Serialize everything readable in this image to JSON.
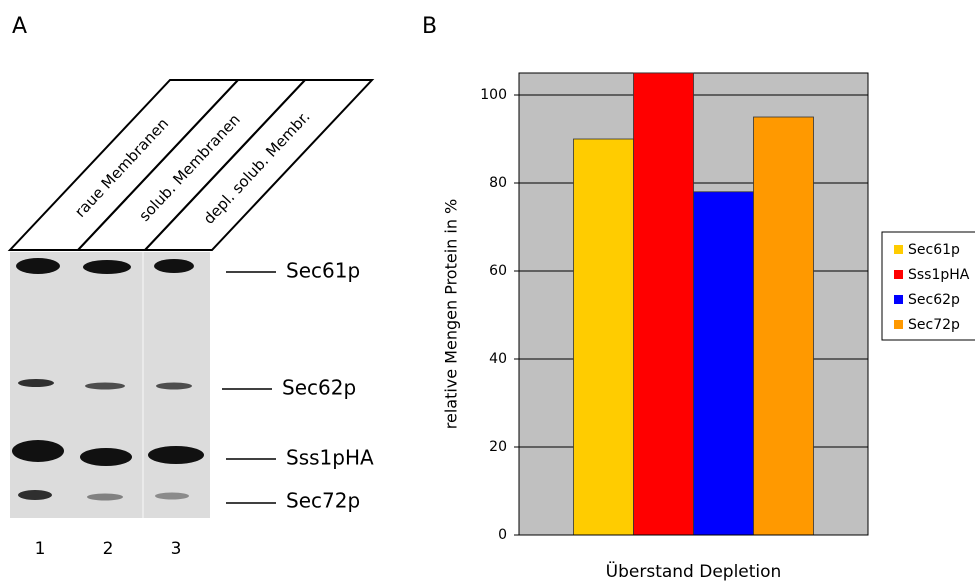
{
  "panel_labels": [
    "A",
    "B"
  ],
  "gel": {
    "lanes": [
      "raue Membranen",
      "solub. Membranen",
      "depl. solub. Membr."
    ],
    "lane_numbers": [
      "1",
      "2",
      "3"
    ],
    "bands": [
      "Sec61p",
      "Sec62p",
      "Sss1pHA",
      "Sec72p"
    ]
  },
  "chart_data": {
    "type": "bar",
    "ylabel": "relative Mengen Protein in %",
    "categories": [
      "Überstand Depletion"
    ],
    "series": [
      {
        "name": "Sec61p",
        "color": "#ffcc00",
        "values": [
          90
        ]
      },
      {
        "name": "Sss1pHA",
        "color": "#ff0000",
        "values": [
          105
        ]
      },
      {
        "name": "Sec62p",
        "color": "#0000ff",
        "values": [
          78
        ]
      },
      {
        "name": "Sec72p",
        "color": "#ff9900",
        "values": [
          95
        ]
      }
    ],
    "ylim": [
      0,
      105
    ],
    "yticks": [
      0,
      20,
      40,
      60,
      80,
      100
    ],
    "grid": true,
    "legend": "right"
  }
}
